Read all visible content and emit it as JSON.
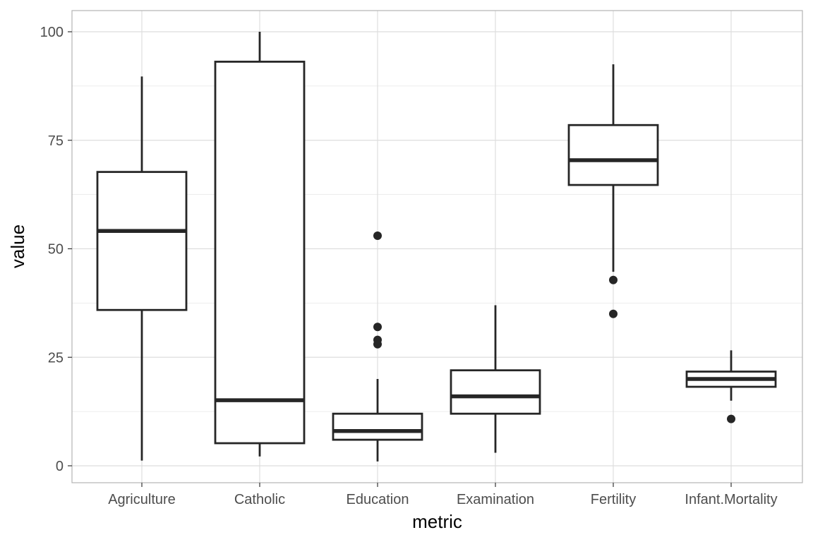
{
  "chart_data": {
    "type": "boxplot",
    "xlabel": "metric",
    "ylabel": "value",
    "ylim": [
      -3.6,
      105
    ],
    "y_ticks": [
      0,
      25,
      50,
      75,
      100
    ],
    "categories": [
      "Agriculture",
      "Catholic",
      "Education",
      "Examination",
      "Fertility",
      "Infant.Mortality"
    ],
    "boxes": [
      {
        "category": "Agriculture",
        "whisker_low": 1.2,
        "q1": 35.9,
        "median": 54.1,
        "q3": 67.7,
        "whisker_high": 89.7,
        "outliers": []
      },
      {
        "category": "Catholic",
        "whisker_low": 2.15,
        "q1": 5.2,
        "median": 15.1,
        "q3": 93.1,
        "whisker_high": 100,
        "outliers": []
      },
      {
        "category": "Education",
        "whisker_low": 1,
        "q1": 6,
        "median": 8,
        "q3": 12,
        "whisker_high": 20,
        "outliers": [
          28,
          29,
          32,
          53
        ]
      },
      {
        "category": "Examination",
        "whisker_low": 3,
        "q1": 12,
        "median": 16,
        "q3": 22,
        "whisker_high": 37,
        "outliers": []
      },
      {
        "category": "Fertility",
        "whisker_low": 44.7,
        "q1": 64.7,
        "median": 70.4,
        "q3": 78.5,
        "whisker_high": 92.5,
        "outliers": [
          35,
          42.8
        ]
      },
      {
        "category": "Infant.Mortality",
        "whisker_low": 15,
        "q1": 18.2,
        "median": 20,
        "q3": 21.7,
        "whisker_high": 26.6,
        "outliers": [
          10.8
        ]
      }
    ],
    "grid": true,
    "legend": "none",
    "colors": {
      "box_stroke": "#262626",
      "grid": "#dedede",
      "panel_border": "#b3b3b3",
      "tick_text": "#4d4d4d"
    }
  }
}
